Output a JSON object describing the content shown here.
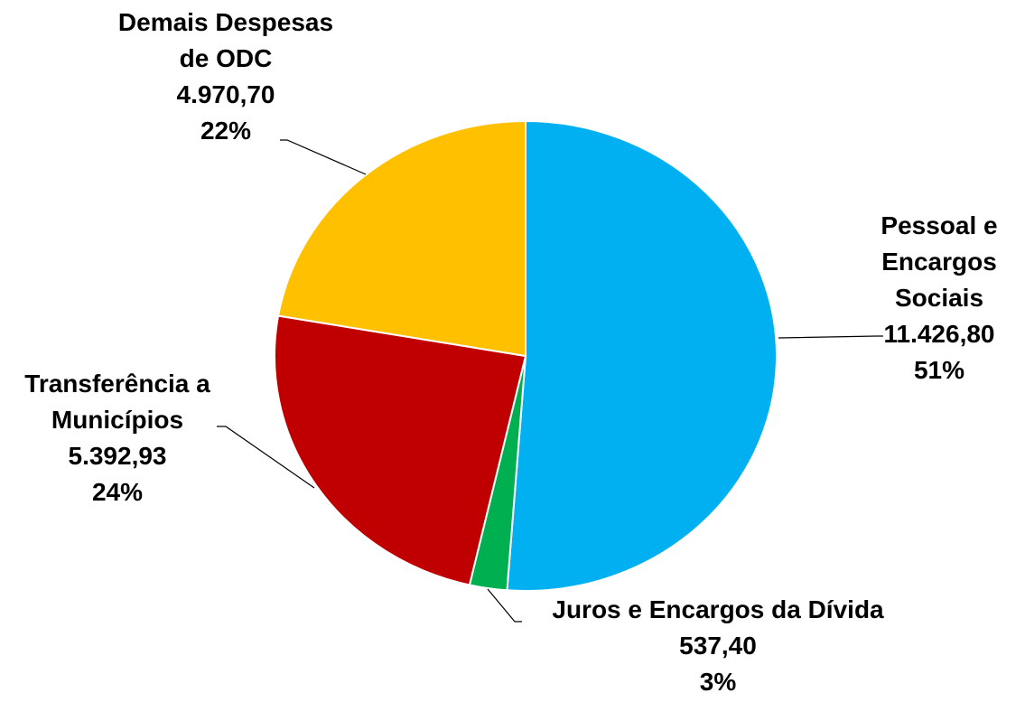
{
  "chart_data": {
    "type": "pie",
    "categories": [
      "Pessoal e Encargos Sociais",
      "Juros e Encargos da Dívida",
      "Transferência a Municípios",
      "Demais Despesas de ODC"
    ],
    "values": [
      11426.8,
      537.4,
      5392.93,
      4970.7
    ],
    "value_labels": [
      "11.426,80",
      "537,40",
      "5.392,93",
      "4.970,70"
    ],
    "percentages": [
      51,
      3,
      24,
      22
    ],
    "percentage_labels": [
      "51%",
      "3%",
      "24%",
      "22%"
    ],
    "colors": [
      "#00b0f0",
      "#00b050",
      "#c00000",
      "#ffc000"
    ]
  }
}
